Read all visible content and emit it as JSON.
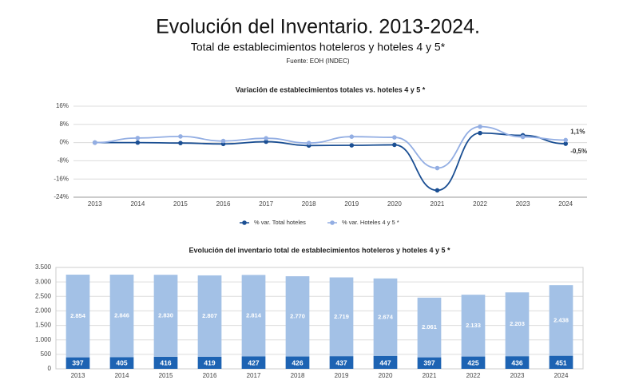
{
  "title": "Evolución del Inventario. 2013-2024.",
  "subtitle": "Total de establecimientos hoteleros y hoteles 4 y 5*",
  "source": "Fuente: EOH (INDEC)",
  "chart_data": [
    {
      "type": "line",
      "title": "Variación de establecimientos totales vs. hoteles 4 y 5 *",
      "categories": [
        "2013",
        "2014",
        "2015",
        "2016",
        "2017",
        "2018",
        "2019",
        "2020",
        "2021",
        "2022",
        "2023",
        "2024"
      ],
      "ylim": [
        -24,
        16
      ],
      "yticks": [
        {
          "value": -24,
          "label": "-24%"
        },
        {
          "value": -16,
          "label": "-16%"
        },
        {
          "value": -8,
          "label": "-8%"
        },
        {
          "value": 0,
          "label": "0%"
        },
        {
          "value": 8,
          "label": "8%"
        },
        {
          "value": 16,
          "label": "16%"
        }
      ],
      "grid": true,
      "legend": "bottom",
      "series": [
        {
          "name": "% var. Total hoteles",
          "color": "#1b4f93",
          "values": [
            0,
            0,
            -0.2,
            -0.6,
            0.4,
            -1.3,
            -1.2,
            -1.0,
            -21.0,
            4.2,
            3.2,
            -0.5
          ],
          "value_labels": [
            null,
            null,
            null,
            null,
            null,
            null,
            null,
            null,
            null,
            null,
            null,
            "-0,5%"
          ]
        },
        {
          "name": "% var. Hoteles 4 y 5 *",
          "color": "#93aee3",
          "values": [
            0,
            2.0,
            2.7,
            0.7,
            1.9,
            -0.2,
            2.6,
            2.3,
            -11.2,
            7.0,
            2.5,
            1.1
          ],
          "value_labels": [
            null,
            null,
            null,
            null,
            null,
            null,
            null,
            null,
            null,
            null,
            null,
            "1,1%"
          ]
        }
      ]
    },
    {
      "type": "stacked_bar",
      "title": "Evolución del inventario total de establecimientos hoteleros y hoteles 4 y 5 *",
      "categories": [
        "2013",
        "2014",
        "2015",
        "2016",
        "2017",
        "2018",
        "2019",
        "2020",
        "2021",
        "2022",
        "2023",
        "2024"
      ],
      "ylim": [
        0,
        3500
      ],
      "yticks": [
        0,
        500,
        {
          "value": 1000,
          "label": "1.000"
        },
        {
          "value": 1500,
          "label": "1.500"
        },
        {
          "value": 2000,
          "label": "2.000"
        },
        {
          "value": 2500,
          "label": "2.500"
        },
        {
          "value": 3000,
          "label": "3.000"
        },
        {
          "value": 3500,
          "label": "3.500"
        }
      ],
      "grid": true,
      "series": [
        {
          "color": "#1d63b3",
          "values": [
            397,
            405,
            416,
            419,
            427,
            426,
            437,
            447,
            397,
            425,
            436,
            451
          ]
        },
        {
          "color": "#a3c1e6",
          "values": [
            2854,
            2846,
            2830,
            2807,
            2814,
            2770,
            2719,
            2674,
            2061,
            2133,
            2203,
            2438
          ],
          "value_labels": [
            "2.854",
            "2.846",
            "2.830",
            "2.807",
            "2.814",
            "2.770",
            "2.719",
            "2.674",
            "2.061",
            "2.133",
            "2.203",
            "2.438"
          ]
        }
      ]
    }
  ]
}
